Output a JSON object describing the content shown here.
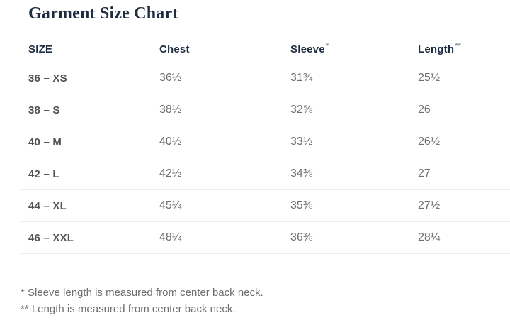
{
  "page": {
    "title": "Garment Size Chart"
  },
  "table": {
    "headers": [
      {
        "label": "SIZE",
        "mark": ""
      },
      {
        "label": "Chest",
        "mark": ""
      },
      {
        "label": "Sleeve",
        "mark": "*"
      },
      {
        "label": "Length",
        "mark": "**"
      }
    ],
    "rows": [
      {
        "size": "36 – XS",
        "chest": "36½",
        "sleeve": "31¾",
        "length": "25½"
      },
      {
        "size": "38 – S",
        "chest": "38½",
        "sleeve": "32⅝",
        "length": "26"
      },
      {
        "size": "40 – M",
        "chest": "40½",
        "sleeve": "33½",
        "length": "26½"
      },
      {
        "size": "42 – L",
        "chest": "42½",
        "sleeve": "34⅜",
        "length": "27"
      },
      {
        "size": "44 – XL",
        "chest": "45¼",
        "sleeve": "35⅜",
        "length": "27½"
      },
      {
        "size": "46 – XXL",
        "chest": "48¼",
        "sleeve": "36⅜",
        "length": "28¼"
      }
    ]
  },
  "footnotes": [
    "* Sleeve length is measured from center back neck.",
    "** Length is measured from center back neck."
  ],
  "colors": {
    "heading_navy": "#1f2d42",
    "row_label_gray": "#525252",
    "value_gray": "#6d6d6d",
    "footnote_gray": "#6e6e6e",
    "divider": "#eeedeb"
  }
}
